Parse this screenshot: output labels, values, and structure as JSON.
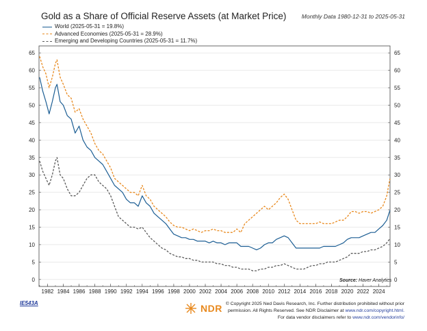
{
  "header": {
    "title": "Gold as a Share of Official Reserve Assets (at Market Price)",
    "date_range": "Monthly Data 1980-12-31 to 2025-05-31"
  },
  "source": {
    "label": "Source:",
    "text": "Haver Analytics"
  },
  "footer": {
    "code": "IE543A",
    "logo_text": "NDR",
    "copyright_line1": "© Copyright 2025 Ned Davis Research, Inc. Further distribution prohibited without prior",
    "copyright_line2_prefix": "permission. All Rights Reserved. See NDR Disclaimer at",
    "copyright_line2_link": "www.ndr.com/copyright.html.",
    "copyright_line3_prefix": "For data vendor disclaimers refer to",
    "copyright_line3_link": "www.ndr.com/vendorinfo/"
  },
  "colors": {
    "world": "#1b5d93",
    "advanced": "#e8891e",
    "emerging": "#5a5a5a",
    "gridline": "#dddddd"
  },
  "chart_data": {
    "type": "line",
    "title": "Gold as a Share of Official Reserve Assets (at Market Price)",
    "xlabel": "",
    "ylabel": "",
    "xlim": [
      1980.92,
      2025.42
    ],
    "ylim": [
      -2,
      67
    ],
    "grid": true,
    "legend_position": "top-left",
    "x_ticks": [
      "1982",
      "1984",
      "1986",
      "1988",
      "1990",
      "1992",
      "1994",
      "1996",
      "1998",
      "2000",
      "2002",
      "2004",
      "2006",
      "2008",
      "2010",
      "2012",
      "2014",
      "2016",
      "2018",
      "2020",
      "2022",
      "2024"
    ],
    "y_ticks": [
      0,
      5,
      10,
      15,
      20,
      25,
      30,
      35,
      40,
      45,
      50,
      55,
      60,
      65
    ],
    "series": [
      {
        "name": "World",
        "label": "World (2025-05-31 = 19.8%)",
        "style": "solid",
        "x": [
          1981.0,
          1981.4,
          1981.8,
          1982.2,
          1982.6,
          1983.0,
          1983.2,
          1983.6,
          1984.0,
          1984.5,
          1985.0,
          1985.5,
          1986.0,
          1986.5,
          1987.0,
          1987.5,
          1988.0,
          1988.5,
          1989.0,
          1989.5,
          1990.0,
          1990.5,
          1991.0,
          1991.5,
          1992.0,
          1992.5,
          1993.0,
          1993.5,
          1994.0,
          1994.5,
          1995.0,
          1995.5,
          1996.0,
          1996.5,
          1997.0,
          1997.5,
          1998.0,
          1998.5,
          1999.0,
          1999.5,
          2000.0,
          2000.5,
          2001.0,
          2001.5,
          2002.0,
          2002.5,
          2003.0,
          2003.5,
          2004.0,
          2004.5,
          2005.0,
          2005.5,
          2006.0,
          2006.5,
          2007.0,
          2007.5,
          2008.0,
          2008.5,
          2009.0,
          2009.5,
          2010.0,
          2010.5,
          2011.0,
          2011.5,
          2012.0,
          2012.5,
          2013.0,
          2013.5,
          2014.0,
          2014.5,
          2015.0,
          2015.5,
          2016.0,
          2016.5,
          2017.0,
          2017.5,
          2018.0,
          2018.5,
          2019.0,
          2019.5,
          2020.0,
          2020.5,
          2021.0,
          2021.5,
          2022.0,
          2022.5,
          2023.0,
          2023.5,
          2024.0,
          2024.5,
          2025.0,
          2025.4
        ],
        "values": [
          58,
          54,
          51,
          47.5,
          51,
          55,
          56,
          51,
          50,
          47,
          46,
          42,
          44,
          40,
          38,
          37,
          35,
          34,
          33,
          31,
          29,
          27,
          26,
          25,
          23,
          22,
          22,
          21,
          24,
          22,
          21,
          19,
          18,
          17,
          16,
          14.5,
          13,
          12.5,
          12,
          12,
          11.5,
          11.5,
          11,
          11,
          11,
          10.5,
          11,
          10.5,
          10.5,
          10,
          10.5,
          10.5,
          10.5,
          9.5,
          9.5,
          9.5,
          9,
          8.5,
          9,
          10,
          10.5,
          10.5,
          11.5,
          12,
          12.5,
          12,
          10.5,
          9,
          9,
          9,
          9,
          9,
          9,
          9,
          9.5,
          9.5,
          9.5,
          9.5,
          10,
          10.5,
          11.5,
          12,
          12,
          12,
          12.5,
          13,
          13.5,
          13.5,
          14.5,
          15.5,
          17,
          19.8
        ]
      },
      {
        "name": "Advanced Economies",
        "label": "Advanced Economies (2025-05-31 = 28.9%)",
        "style": "dashed",
        "x": [
          1981.0,
          1981.4,
          1981.8,
          1982.2,
          1982.6,
          1983.0,
          1983.2,
          1983.6,
          1984.0,
          1984.5,
          1985.0,
          1985.5,
          1986.0,
          1986.5,
          1987.0,
          1987.5,
          1988.0,
          1988.5,
          1989.0,
          1989.5,
          1990.0,
          1990.5,
          1991.0,
          1991.5,
          1992.0,
          1992.5,
          1993.0,
          1993.5,
          1994.0,
          1994.5,
          1995.0,
          1995.5,
          1996.0,
          1996.5,
          1997.0,
          1997.5,
          1998.0,
          1998.5,
          1999.0,
          1999.5,
          2000.0,
          2000.5,
          2001.0,
          2001.5,
          2002.0,
          2002.5,
          2003.0,
          2003.5,
          2004.0,
          2004.5,
          2005.0,
          2005.5,
          2006.0,
          2006.5,
          2007.0,
          2007.5,
          2008.0,
          2008.5,
          2009.0,
          2009.5,
          2010.0,
          2010.5,
          2011.0,
          2011.5,
          2012.0,
          2012.5,
          2013.0,
          2013.5,
          2014.0,
          2014.5,
          2015.0,
          2015.5,
          2016.0,
          2016.5,
          2017.0,
          2017.5,
          2018.0,
          2018.5,
          2019.0,
          2019.5,
          2020.0,
          2020.5,
          2021.0,
          2021.5,
          2022.0,
          2022.5,
          2023.0,
          2023.5,
          2024.0,
          2024.5,
          2025.0,
          2025.4
        ],
        "values": [
          64,
          61,
          59,
          55,
          58,
          62,
          63,
          58,
          56,
          53,
          52,
          48,
          49,
          46,
          44,
          42,
          39,
          37,
          36,
          34,
          32,
          29,
          28,
          27,
          26,
          25,
          25,
          24,
          27,
          24,
          23,
          21,
          20,
          19,
          18,
          16.5,
          15.5,
          15,
          15,
          14.5,
          14,
          14.5,
          14,
          13.5,
          14,
          14,
          14.5,
          14,
          14,
          13.5,
          13.5,
          13.5,
          14.5,
          13.5,
          16,
          17,
          18,
          19,
          20,
          21,
          20,
          21,
          22,
          23.5,
          24.5,
          23,
          20,
          17,
          16,
          16,
          16,
          16,
          16,
          16.5,
          16,
          16,
          16,
          16.5,
          17,
          17,
          18,
          19.5,
          19.5,
          19,
          19.5,
          19.5,
          19,
          19.5,
          20,
          21,
          24,
          28.9
        ]
      },
      {
        "name": "Emerging and Developing Countries",
        "label": "Emerging and Developing Countries (2025-05-31 = 11.7%)",
        "style": "dashed",
        "x": [
          1981.0,
          1981.4,
          1981.8,
          1982.2,
          1982.6,
          1983.0,
          1983.2,
          1983.6,
          1984.0,
          1984.5,
          1985.0,
          1985.5,
          1986.0,
          1986.5,
          1987.0,
          1987.5,
          1988.0,
          1988.5,
          1989.0,
          1989.5,
          1990.0,
          1990.5,
          1991.0,
          1991.5,
          1992.0,
          1992.5,
          1993.0,
          1993.5,
          1994.0,
          1994.5,
          1995.0,
          1995.5,
          1996.0,
          1996.5,
          1997.0,
          1997.5,
          1998.0,
          1998.5,
          1999.0,
          1999.5,
          2000.0,
          2000.5,
          2001.0,
          2001.5,
          2002.0,
          2002.5,
          2003.0,
          2003.5,
          2004.0,
          2004.5,
          2005.0,
          2005.5,
          2006.0,
          2006.5,
          2007.0,
          2007.5,
          2008.0,
          2008.5,
          2009.0,
          2009.5,
          2010.0,
          2010.5,
          2011.0,
          2011.5,
          2012.0,
          2012.5,
          2013.0,
          2013.5,
          2014.0,
          2014.5,
          2015.0,
          2015.5,
          2016.0,
          2016.5,
          2017.0,
          2017.5,
          2018.0,
          2018.5,
          2019.0,
          2019.5,
          2020.0,
          2020.5,
          2021.0,
          2021.5,
          2022.0,
          2022.5,
          2023.0,
          2023.5,
          2024.0,
          2024.5,
          2025.0,
          2025.4
        ],
        "values": [
          34,
          31,
          29,
          27,
          30,
          34,
          35,
          30,
          29,
          26,
          24,
          24,
          25,
          27,
          29,
          30,
          30,
          28,
          27,
          26,
          24,
          21,
          18,
          17,
          16,
          15,
          15,
          14.5,
          15,
          13.5,
          12,
          11,
          10,
          9,
          8.5,
          7.5,
          7,
          6.5,
          6.5,
          6,
          6,
          5.5,
          5.5,
          5,
          5,
          5,
          5,
          4.5,
          4.5,
          4,
          4,
          3.5,
          3.5,
          3,
          3,
          3,
          2.5,
          2.5,
          3,
          3,
          3.5,
          3.5,
          4,
          4,
          4.5,
          4,
          3.5,
          3,
          3,
          3,
          3.5,
          4,
          4,
          4.5,
          4.5,
          5,
          5,
          5,
          5.5,
          6,
          6.5,
          7.5,
          7.5,
          7.5,
          8,
          8,
          8.5,
          8.5,
          9,
          9.5,
          10.5,
          11.7
        ]
      }
    ]
  }
}
